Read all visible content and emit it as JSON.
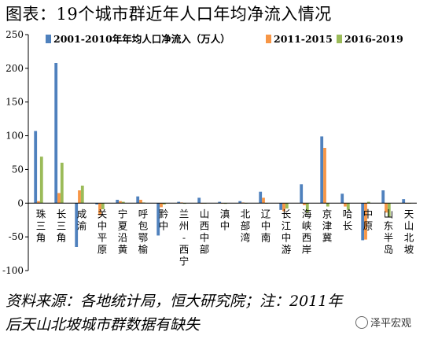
{
  "header": {
    "title": "图表：19个城市群近年人口年均净流入情况"
  },
  "footer": {
    "note_line1": "资料来源：各地统计局，恒大研究院；注：2011年",
    "note_line2": "后天山北坡城市群数据有缺失",
    "watermark": "泽平宏观"
  },
  "chart_data": {
    "type": "bar",
    "ylim": [
      -100,
      250
    ],
    "yticks": [
      -100,
      -50,
      0,
      50,
      100,
      150,
      200,
      250
    ],
    "grid": false,
    "legend_position": "top",
    "categories": [
      "珠三角",
      "长三角",
      "成渝",
      "关中平原",
      "宁夏沿黄",
      "呼包鄂榆",
      "黔中",
      "兰州-西宁",
      "山西中部",
      "滇中",
      "北部湾",
      "辽中南",
      "长江中游",
      "海峡西岸",
      "京津冀",
      "哈长",
      "中原",
      "山东半岛",
      "天山北坡"
    ],
    "category_lines": [
      [
        "珠",
        "三",
        "角"
      ],
      [
        "长",
        "三",
        "角"
      ],
      [
        "成",
        "渝"
      ],
      [
        "关",
        "中",
        "平",
        "原"
      ],
      [
        "宁",
        "夏",
        "沿",
        "黄"
      ],
      [
        "呼",
        "包",
        "鄂",
        "榆"
      ],
      [
        "黔",
        "中"
      ],
      [
        "兰",
        "州",
        "-",
        "西",
        "宁"
      ],
      [
        "山",
        "西",
        "中",
        "部"
      ],
      [
        "滇",
        "中"
      ],
      [
        "北",
        "部",
        "湾"
      ],
      [
        "辽",
        "中",
        "南"
      ],
      [
        "长",
        "江",
        "中",
        "游"
      ],
      [
        "海",
        "峡",
        "西",
        "岸"
      ],
      [
        "京",
        "津",
        "冀"
      ],
      [
        "哈",
        "长"
      ],
      [
        "中",
        "原"
      ],
      [
        "山",
        "东",
        "半",
        "岛"
      ],
      [
        "天",
        "山",
        "北",
        "坡"
      ]
    ],
    "series": [
      {
        "name": "2001-2010年年均人口净流入（万人）",
        "color": "#4f81bd",
        "values": [
          107,
          208,
          -65,
          -2,
          5,
          10,
          -48,
          2,
          8,
          2,
          3,
          17,
          -10,
          28,
          99,
          14,
          -55,
          19,
          6
        ]
      },
      {
        "name": "2011-2015",
        "color": "#f79646",
        "values": [
          3,
          15,
          19,
          -18,
          3,
          5,
          -6,
          1,
          0,
          0,
          1,
          8,
          -12,
          -3,
          82,
          -5,
          -54,
          -14,
          0
        ]
      },
      {
        "name": "2016-2019",
        "color": "#9bbb59",
        "values": [
          69,
          60,
          26,
          -9,
          2,
          1,
          -2,
          -1,
          0,
          -1,
          0,
          0,
          -8,
          -14,
          -5,
          -10,
          2,
          -20,
          0
        ]
      }
    ]
  }
}
